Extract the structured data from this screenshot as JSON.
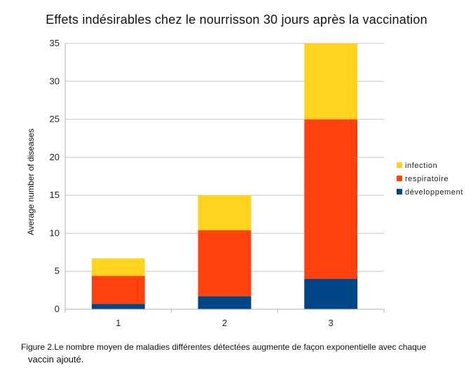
{
  "chart_data": {
    "type": "bar",
    "stacked": true,
    "title": "Effets indésirables chez le nourrisson 30 jours après la vaccination",
    "ylabel": "Average number of diseases",
    "xlabel": "",
    "categories": [
      "1",
      "2",
      "3"
    ],
    "ylim": [
      0,
      35
    ],
    "yticks": [
      0,
      5,
      10,
      15,
      20,
      25,
      30,
      35
    ],
    "grid": true,
    "legend_position": "right",
    "series": [
      {
        "name": "développement",
        "color": "#004586",
        "values": [
          0.7,
          1.7,
          4.0
        ]
      },
      {
        "name": "respiratoire",
        "color": "#ff420e",
        "values": [
          3.7,
          8.7,
          21.0
        ]
      },
      {
        "name": "infection",
        "color": "#ffd320",
        "values": [
          2.3,
          4.6,
          10.0
        ]
      }
    ],
    "legend_order": [
      "infection",
      "respiratoire",
      "développement"
    ]
  },
  "caption": {
    "line1": "Figure 2.Le nombre moyen de maladies différentes détectées augmente de façon exponentielle avec chaque",
    "line2": "vaccin ajouté."
  }
}
